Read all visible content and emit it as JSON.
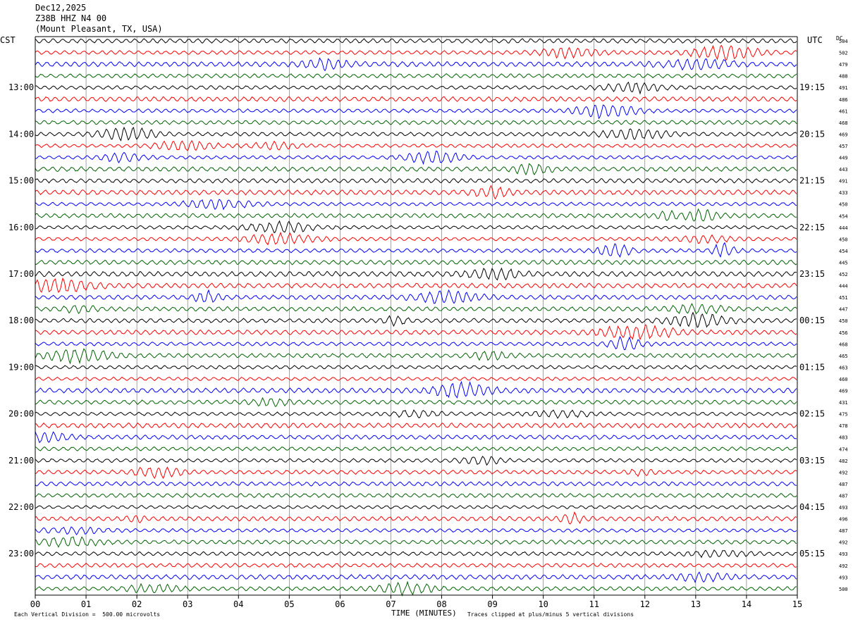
{
  "header": {
    "date": "Dec12,2025",
    "station": "Z38B HHZ N4 00",
    "location": "(Mount Pleasant, TX, USA)"
  },
  "left_timezone": "CST",
  "right_timezone": "UTC",
  "dc_label": "DC",
  "footer": {
    "left_note": "Each Vertical Division =  500.00 microvolts",
    "xlabel": "TIME (MINUTES)",
    "right_note": "Traces clipped at plus/minus 5 vertical divisions"
  },
  "chart_data": {
    "type": "line",
    "title": "Z38B HHZ N4 00",
    "xlabel": "TIME (MINUTES)",
    "x_ticks": [
      "00",
      "01",
      "02",
      "03",
      "04",
      "05",
      "06",
      "07",
      "08",
      "09",
      "10",
      "11",
      "12",
      "13",
      "14",
      "15"
    ],
    "xlim": [
      0,
      15
    ],
    "grid": true,
    "trace_colors": [
      "#000000",
      "#ff0000",
      "#0000ff",
      "#006400"
    ],
    "left_hour_labels": [
      "13:00",
      "14:00",
      "15:00",
      "16:00",
      "17:00",
      "18:00",
      "19:00",
      "20:00",
      "21:00",
      "22:00",
      "23:00"
    ],
    "right_hour_labels": [
      "19:15",
      "20:15",
      "21:15",
      "22:15",
      "23:15",
      "00:15",
      "01:15",
      "02:15",
      "03:15",
      "04:15",
      "05:15"
    ],
    "dc_offsets": [
      504,
      502,
      479,
      488,
      491,
      486,
      461,
      468,
      469,
      457,
      449,
      443,
      491,
      433,
      450,
      454,
      444,
      450,
      454,
      445,
      452,
      444,
      451,
      447,
      450,
      456,
      468,
      465,
      463,
      460,
      469,
      431,
      475,
      478,
      483,
      474,
      482,
      492,
      487,
      487,
      493,
      496,
      487,
      492,
      493,
      492,
      493,
      500
    ],
    "units_per_division_microvolts": 500.0,
    "clip_divisions": 5,
    "traces_count": 48
  }
}
